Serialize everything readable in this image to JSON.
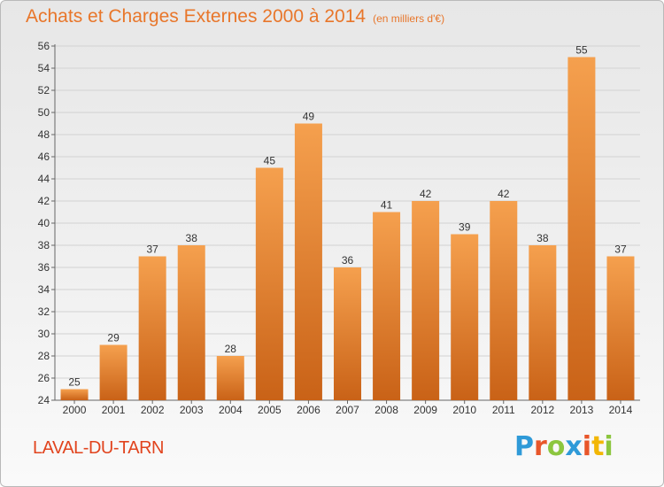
{
  "chart_data": {
    "type": "bar",
    "title": "Achats et Charges Externes 2000 à 2014",
    "subtitle": "(en milliers d'€)",
    "categories": [
      "2000",
      "2001",
      "2002",
      "2003",
      "2004",
      "2005",
      "2006",
      "2007",
      "2008",
      "2009",
      "2010",
      "2011",
      "2012",
      "2013",
      "2014"
    ],
    "values": [
      25,
      29,
      37,
      38,
      28,
      45,
      49,
      36,
      41,
      42,
      39,
      42,
      38,
      55,
      37
    ],
    "ylim": [
      24,
      56
    ],
    "yticks": [
      24,
      26,
      28,
      30,
      32,
      34,
      36,
      38,
      40,
      42,
      44,
      46,
      48,
      50,
      52,
      54,
      56
    ],
    "grid": true,
    "xlabel": "",
    "ylabel": "",
    "bar_color_top": "#f5a04e",
    "bar_color_bottom": "#c96217"
  },
  "footer": {
    "commune": "LAVAL-DU-TARN",
    "logo_letters": [
      "P",
      "r",
      "o",
      "x",
      "i",
      "t",
      "i"
    ],
    "logo_colors": [
      "#2f9ad8",
      "#e8562a",
      "#8cc63f",
      "#2f9ad8",
      "#e8562a",
      "#f2b705",
      "#8cc63f"
    ]
  }
}
